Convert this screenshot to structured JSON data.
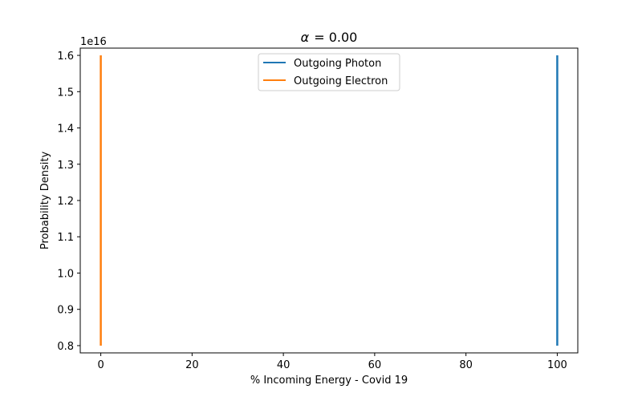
{
  "chart_data": {
    "type": "line",
    "title_symbol": "α",
    "title_value": "= 0.00",
    "xlabel": "% Incoming Energy - Covid 19",
    "ylabel": "Probability Density",
    "y_offset_label": "1e16",
    "xlim": [
      -4.5,
      104.5
    ],
    "ylim": [
      0.78,
      1.62
    ],
    "xticks": [
      0,
      20,
      40,
      60,
      80,
      100
    ],
    "yticks": [
      0.8,
      0.9,
      1.0,
      1.1,
      1.2,
      1.3,
      1.4,
      1.5,
      1.6
    ],
    "xtick_labels": [
      "0",
      "20",
      "40",
      "60",
      "80",
      "100"
    ],
    "ytick_labels": [
      "0.8",
      "0.9",
      "1.0",
      "1.1",
      "1.2",
      "1.3",
      "1.4",
      "1.5",
      "1.6"
    ],
    "legend_position": "upper-center",
    "grid": false,
    "series": [
      {
        "name": "Outgoing Photon",
        "color": "#1f77b4",
        "x": [
          100,
          100
        ],
        "y": [
          0.8,
          1.6
        ]
      },
      {
        "name": "Outgoing Electron",
        "color": "#ff7f0e",
        "x": [
          0,
          0
        ],
        "y": [
          0.8,
          1.6
        ]
      }
    ]
  }
}
